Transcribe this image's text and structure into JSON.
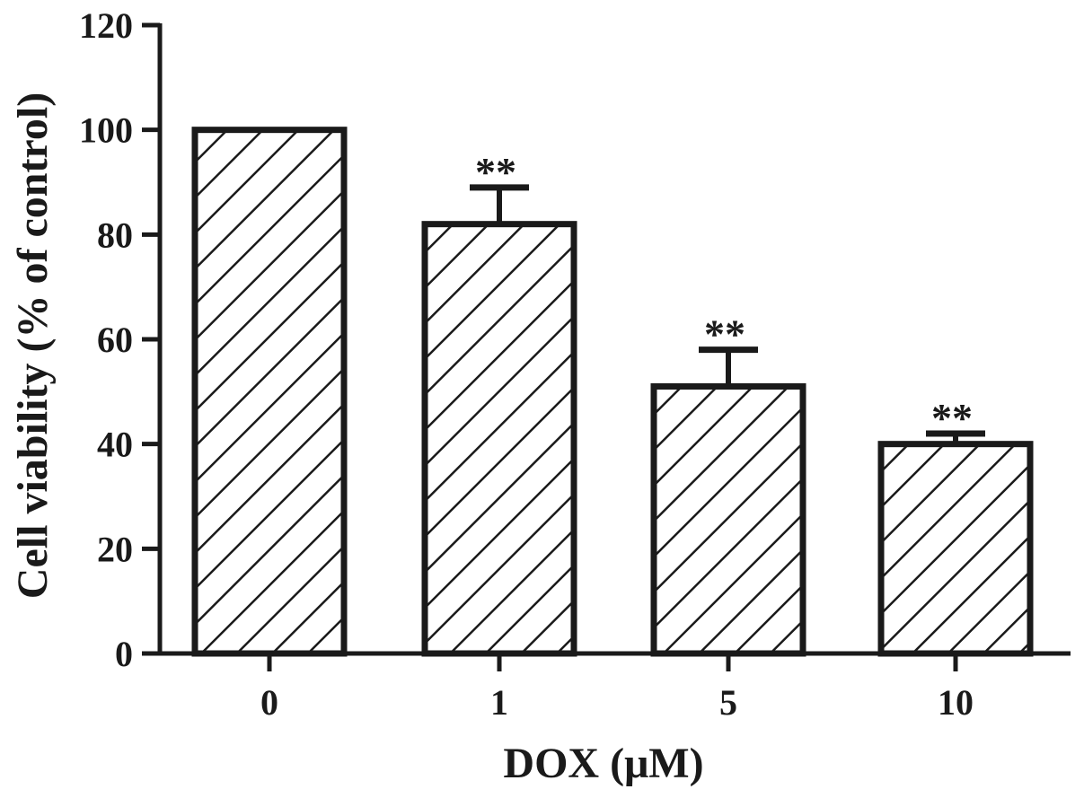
{
  "chart_data": {
    "type": "bar",
    "title": "",
    "xlabel": "DOX (μM)",
    "ylabel": "Cell viability (% of control)",
    "categories": [
      "0",
      "1",
      "5",
      "10"
    ],
    "values": [
      100,
      82,
      51,
      40
    ],
    "errors": [
      0,
      7,
      7,
      2
    ],
    "significance": [
      "",
      "**",
      "**",
      "**"
    ],
    "ylim": [
      0,
      120
    ],
    "yticks": [
      "0",
      "20",
      "40",
      "60",
      "80",
      "100",
      "120"
    ],
    "bar_fill": "hatched-diagonal",
    "legend": "none",
    "grid": false,
    "colors": {
      "bar_stroke": "#1a1a1a",
      "hatch": "#1a1a1a",
      "background": "#ffffff"
    }
  }
}
